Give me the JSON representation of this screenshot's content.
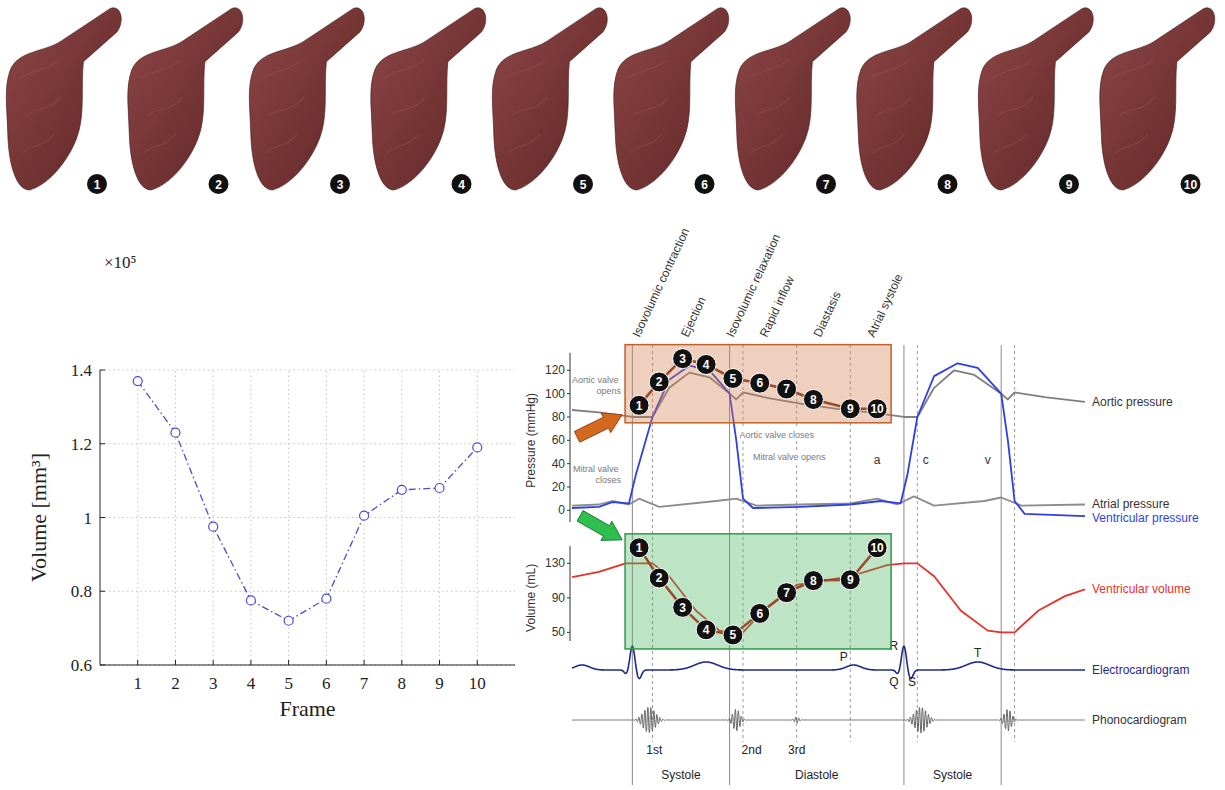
{
  "frames": {
    "labels": [
      1,
      2,
      3,
      4,
      5,
      6,
      7,
      8,
      9,
      10
    ]
  },
  "chart_data": [
    {
      "type": "line",
      "x": [
        1,
        2,
        3,
        4,
        5,
        6,
        7,
        8,
        9,
        10
      ],
      "values": [
        1.37,
        1.23,
        0.975,
        0.775,
        0.72,
        0.78,
        1.005,
        1.075,
        1.08,
        1.19
      ],
      "x_label": "Frame",
      "y_label": "Volume [mm³]",
      "y_scale_label": "×10⁵",
      "xlim": [
        0,
        11
      ],
      "ylim": [
        0.6,
        1.4
      ],
      "xticks": [
        1,
        2,
        3,
        4,
        5,
        6,
        7,
        8,
        9,
        10
      ],
      "yticks": [
        0.6,
        0.8,
        1,
        1.2,
        1.4
      ],
      "grid": true,
      "color": "#4b4bd6",
      "marker": "circle",
      "line_style": "dashdot"
    },
    {
      "type": "line",
      "tick_labels": "y",
      "xlim": [
        -0.08,
        1.45
      ],
      "ylim": [
        -10,
        135
      ],
      "yticks": [
        0,
        20,
        40,
        60,
        80,
        100,
        120
      ],
      "y_label": "Pressure (mmHg)",
      "y2lim": [
        40,
        150
      ],
      "y2ticks": [
        50,
        90,
        130
      ],
      "y2_label": "Volume (mL)",
      "phases": [
        {
          "label": "Isovolumic contraction",
          "start": 0.1,
          "end": 0.16
        },
        {
          "label": "Ejection",
          "start": 0.16,
          "end": 0.39
        },
        {
          "label": "Isovolumic relaxation",
          "start": 0.39,
          "end": 0.43
        },
        {
          "label": "Rapid inflow",
          "start": 0.43,
          "end": 0.59
        },
        {
          "label": "Diastasis",
          "start": 0.59,
          "end": 0.75
        },
        {
          "label": "Atrial systole",
          "start": 0.75,
          "end": 0.91
        }
      ],
      "event_lines": [
        {
          "t": 0.1,
          "line_style": "solid"
        },
        {
          "t": 0.16,
          "line_style": "dotted"
        },
        {
          "t": 0.39,
          "line_style": "solid"
        },
        {
          "t": 0.43,
          "line_style": "dotted"
        },
        {
          "t": 0.59,
          "line_style": "dotted"
        },
        {
          "t": 0.75,
          "line_style": "dotted"
        },
        {
          "t": 0.91,
          "line_style": "solid"
        },
        {
          "t": 0.95,
          "line_style": "dotted"
        },
        {
          "t": 1.2,
          "line_style": "solid"
        },
        {
          "t": 1.24,
          "line_style": "dotted"
        }
      ],
      "periods": [
        {
          "label": "Systole",
          "start": 0.1,
          "end": 0.39
        },
        {
          "label": "Diastole",
          "start": 0.39,
          "end": 0.91
        },
        {
          "label": "Systole",
          "start": 0.91,
          "end": 1.2
        }
      ],
      "valve_events": [
        {
          "label": "Aortic valve opens",
          "t": 0.16
        },
        {
          "label": "Mitral valve closes",
          "t": 0.1
        },
        {
          "label": "Aortic valve closes",
          "t": 0.39
        },
        {
          "label": "Mitral valve opens",
          "t": 0.43
        }
      ],
      "atrial_waves": [
        {
          "label": "a",
          "t": 0.83,
          "value": 40
        },
        {
          "label": "c",
          "t": 0.975,
          "value": 40
        },
        {
          "label": "v",
          "t": 1.16,
          "value": 40
        }
      ],
      "series": [
        {
          "name": "Aortic pressure",
          "color": "#7f7f7f",
          "x": [
            -0.08,
            0,
            0.1,
            0.16,
            0.21,
            0.27,
            0.33,
            0.39,
            0.41,
            0.43,
            0.51,
            0.61,
            0.71,
            0.81,
            0.91,
            0.95,
            1.0,
            1.06,
            1.12,
            1.2,
            1.22,
            1.24,
            1.33,
            1.45
          ],
          "values": [
            86,
            84,
            80,
            80,
            105,
            118,
            114,
            100,
            95,
            101,
            96,
            91,
            87,
            84,
            80,
            80,
            105,
            120,
            116,
            100,
            95,
            101,
            97,
            93
          ]
        },
        {
          "name": "Atrial pressure",
          "color": "#8c8c8c",
          "x": [
            -0.08,
            0,
            0.04,
            0.09,
            0.12,
            0.18,
            0.35,
            0.41,
            0.47,
            0.6,
            0.75,
            0.83,
            0.89,
            0.94,
            1.0,
            1.15,
            1.2,
            1.26,
            1.45
          ],
          "values": [
            4,
            5,
            8,
            5,
            10,
            3,
            8,
            10,
            4,
            5,
            6,
            10,
            5,
            12,
            4,
            8,
            11,
            4,
            5
          ]
        },
        {
          "name": "Ventricular pressure",
          "color": "#2f3fe0",
          "x": [
            -0.08,
            0,
            0.04,
            0.09,
            0.11,
            0.16,
            0.21,
            0.27,
            0.33,
            0.39,
            0.41,
            0.43,
            0.46,
            0.6,
            0.75,
            0.84,
            0.9,
            0.92,
            0.95,
            1.0,
            1.07,
            1.13,
            1.2,
            1.22,
            1.24,
            1.27,
            1.45
          ],
          "values": [
            2,
            3,
            7,
            6,
            30,
            80,
            112,
            124,
            120,
            100,
            60,
            10,
            2,
            3,
            5,
            8,
            6,
            30,
            80,
            115,
            126,
            122,
            100,
            60,
            8,
            -3,
            -5
          ]
        },
        {
          "name": "Ventricular volume",
          "color": "#e8302a",
          "axis": "y2",
          "x": [
            -0.08,
            0,
            0.08,
            0.16,
            0.21,
            0.29,
            0.36,
            0.39,
            0.43,
            0.49,
            0.59,
            0.75,
            0.86,
            0.91,
            0.95,
            1.0,
            1.08,
            1.16,
            1.2,
            1.24,
            1.31,
            1.39,
            1.45
          ],
          "values": [
            114,
            120,
            130,
            130,
            115,
            75,
            52,
            50,
            50,
            75,
            105,
            115,
            128,
            130,
            130,
            115,
            75,
            52,
            50,
            50,
            75,
            92,
            100
          ]
        }
      ],
      "pressure_frames": {
        "color": "#9a4a2a",
        "x": [
          0.12,
          0.18,
          0.25,
          0.32,
          0.4,
          0.48,
          0.56,
          0.64,
          0.75,
          0.83
        ],
        "values": [
          90,
          110,
          130,
          125,
          113,
          109,
          104,
          95,
          87,
          87
        ],
        "labels": [
          1,
          2,
          3,
          4,
          5,
          6,
          7,
          8,
          9,
          10
        ]
      },
      "volume_frames": {
        "color": "#9a4a2a",
        "x": [
          0.12,
          0.18,
          0.25,
          0.32,
          0.4,
          0.48,
          0.56,
          0.64,
          0.75,
          0.83
        ],
        "values": [
          148,
          113,
          79,
          53,
          47,
          72,
          96,
          110,
          111,
          148
        ],
        "labels": [
          1,
          2,
          3,
          4,
          5,
          6,
          7,
          8,
          9,
          10
        ]
      },
      "ecg": {
        "name": "Electrocardiogram",
        "color": "#1f2a8a",
        "waves": [
          "P",
          "Q",
          "R",
          "S",
          "T"
        ]
      },
      "phonocardiogram": {
        "name": "Phonocardiogram",
        "color": "#666666",
        "sounds": [
          "1st",
          "2nd",
          "3rd"
        ]
      }
    }
  ]
}
